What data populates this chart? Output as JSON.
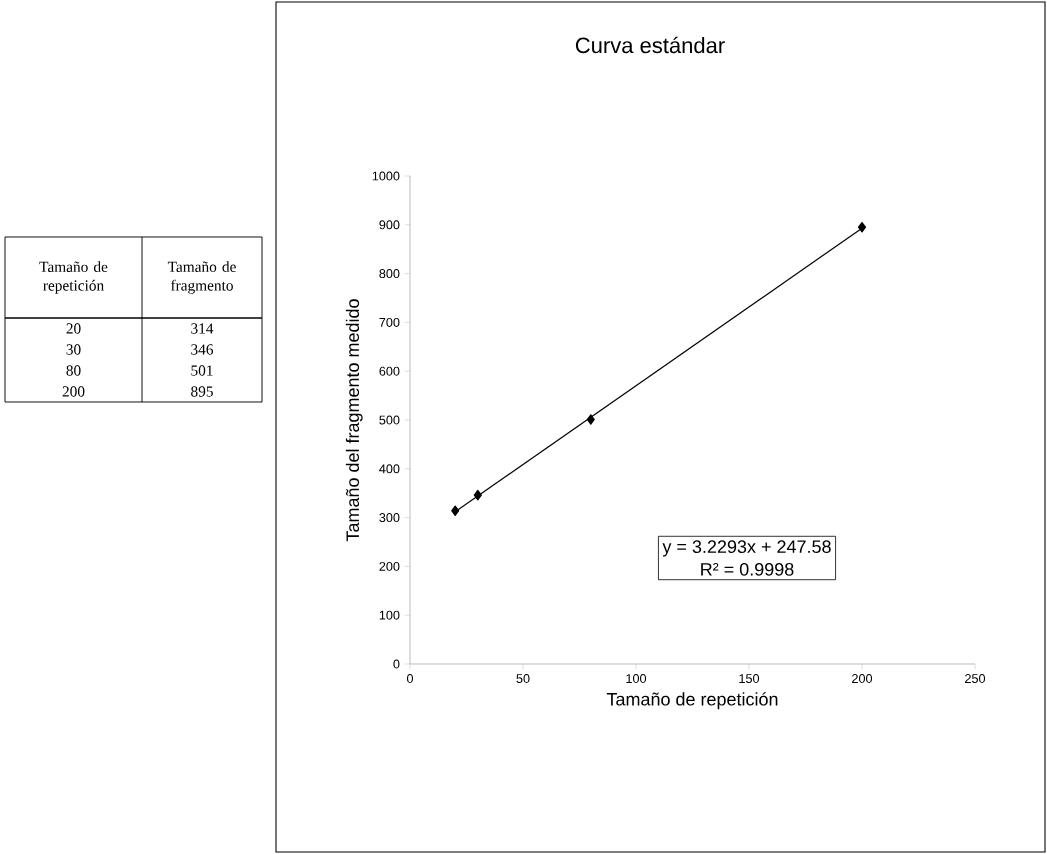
{
  "chart_data": {
    "type": "scatter",
    "title": "Curva estándar",
    "xlabel": "Tamaño de repetición",
    "ylabel": "Tamaño del fragmento medido",
    "xlim": [
      0,
      250
    ],
    "xticks": [
      0,
      50,
      100,
      150,
      200,
      250
    ],
    "ylim": [
      0,
      1000
    ],
    "yticks": [
      0,
      100,
      200,
      300,
      400,
      500,
      600,
      700,
      800,
      900,
      1000
    ],
    "series": [
      {
        "x": [
          20,
          30,
          80,
          200
        ],
        "values": [
          314,
          346,
          501,
          895
        ],
        "color": "#000000",
        "marker": "diamond"
      },
      {
        "type": "line",
        "x": [
          20,
          200
        ],
        "values": [
          312,
          893
        ],
        "color": "#000000",
        "marker": "none",
        "line_style": "solid"
      }
    ],
    "annotations": [
      "y = 3.2293x + 247.58",
      "R² = 0.9998",
      "Tamaño de repetición",
      "Tamaño de fragmento",
      "20",
      "314",
      "30",
      "346",
      "80",
      "501",
      "200",
      "895"
    ]
  }
}
